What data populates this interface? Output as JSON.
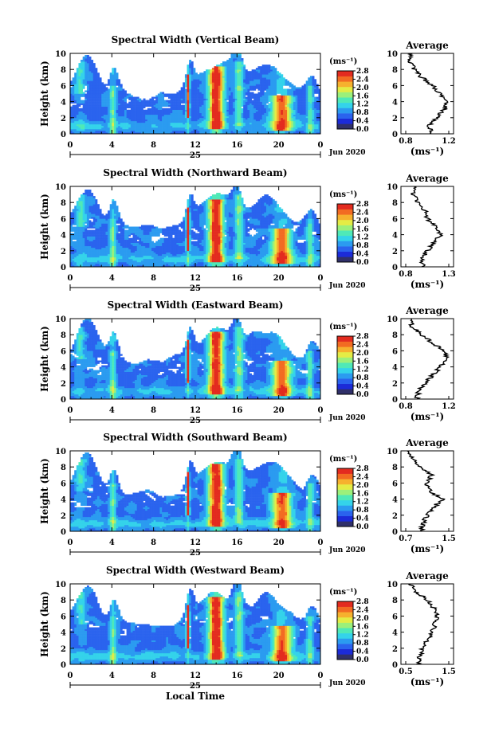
{
  "figure": {
    "shared_xlabel": "Local Time",
    "date_day": "25",
    "date_month_year": "Jun 2020",
    "colorbar_unit": "(ms⁻¹)",
    "colorbar_ticks": [
      "0.0",
      "0.4",
      "0.8",
      "1.2",
      "1.6",
      "2.0",
      "2.4",
      "2.8"
    ],
    "height_label": "Height (km)",
    "average_title": "Average",
    "average_xlabel": "(ms⁻¹)",
    "x_ticks": [
      "0",
      "4",
      "8",
      "12",
      "16",
      "20",
      "0"
    ],
    "y_ticks": [
      "0",
      "2",
      "4",
      "6",
      "8",
      "10"
    ],
    "colormap": [
      "#30306a",
      "#1c2bd8",
      "#2a63ee",
      "#2b9bf0",
      "#34d3ea",
      "#4fe9b7",
      "#9cf07a",
      "#e4ec45",
      "#f6b12e",
      "#f26b22",
      "#e32b1f"
    ]
  },
  "panels": [
    {
      "title": "Spectral Width (Vertical Beam)",
      "avg_xticks": [
        "0.8",
        "1.2"
      ],
      "avg_xlim": [
        0.8,
        1.2
      ]
    },
    {
      "title": "Spectral Width (Northward Beam)",
      "avg_xticks": [
        "0.8",
        "1.3"
      ],
      "avg_xlim": [
        0.8,
        1.3
      ]
    },
    {
      "title": "Spectral Width (Eastward Beam)",
      "avg_xticks": [
        "0.8",
        "1.2"
      ],
      "avg_xlim": [
        0.8,
        1.2
      ]
    },
    {
      "title": "Spectral Width (Southward Beam)",
      "avg_xticks": [
        "0.7",
        "1.5"
      ],
      "avg_xlim": [
        0.7,
        1.5
      ]
    },
    {
      "title": "Spectral Width (Westward Beam)",
      "avg_xticks": [
        "0.5",
        "1.5"
      ],
      "avg_xlim": [
        0.5,
        1.5
      ]
    }
  ],
  "chart_data": {
    "type": "heatmap",
    "quantity": "Spectral Width",
    "units": "ms⁻¹",
    "x_axis": {
      "label": "Local Time",
      "range": [
        0,
        24
      ],
      "unit": "hour"
    },
    "y_axis": {
      "label": "Height (km)",
      "range": [
        0,
        10
      ]
    },
    "color_range": [
      0,
      2.8
    ],
    "average_profiles": [
      {
        "beam": "Vertical",
        "height_km": [
          0,
          1,
          2,
          3,
          4,
          5,
          6,
          7,
          8,
          9,
          10
        ],
        "value": [
          1.05,
          1.02,
          1.08,
          1.16,
          1.19,
          1.12,
          1.05,
          0.95,
          0.88,
          0.84,
          0.85
        ]
      },
      {
        "beam": "Northward",
        "height_km": [
          0,
          1,
          2,
          3,
          4,
          5,
          6,
          7,
          8,
          9,
          10
        ],
        "value": [
          1.0,
          0.98,
          1.05,
          1.12,
          1.22,
          1.14,
          1.05,
          1.02,
          0.95,
          0.88,
          0.9
        ]
      },
      {
        "beam": "Eastward",
        "height_km": [
          0,
          1,
          2,
          3,
          4,
          5,
          6,
          7,
          8,
          9,
          10
        ],
        "value": [
          0.9,
          0.92,
          0.98,
          1.05,
          1.12,
          1.18,
          1.15,
          1.05,
          0.95,
          0.86,
          0.85
        ]
      },
      {
        "beam": "Southward",
        "height_km": [
          0,
          1,
          2,
          3,
          4,
          5,
          6,
          7,
          8,
          9,
          10
        ],
        "value": [
          1.0,
          1.02,
          1.1,
          1.22,
          1.38,
          1.15,
          1.08,
          1.18,
          0.95,
          0.82,
          0.75
        ]
      },
      {
        "beam": "Westward",
        "height_km": [
          0,
          1,
          2,
          3,
          4,
          5,
          6,
          7,
          8,
          9,
          10
        ],
        "value": [
          0.8,
          0.82,
          0.9,
          1.0,
          1.1,
          1.18,
          1.25,
          1.15,
          1.0,
          0.75,
          0.6
        ]
      }
    ]
  }
}
